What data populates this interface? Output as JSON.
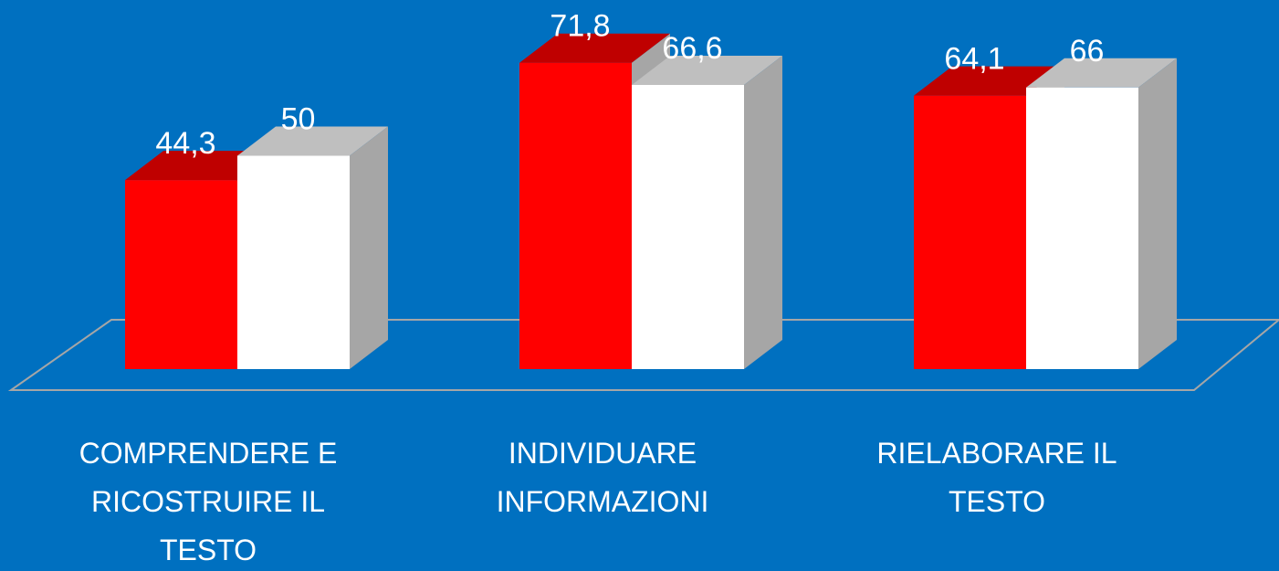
{
  "chart_data": {
    "type": "bar3d",
    "categories": [
      "COMPRENDERE E RICOSTRUIRE IL TESTO",
      "INDIVIDUARE INFORMAZIONI",
      "RIELABORARE IL TESTO"
    ],
    "series": [
      {
        "color": "#ff0000",
        "values": [
          44.3,
          71.8,
          64.1
        ],
        "value_labels": [
          "44,3",
          "71,8",
          "64,1"
        ]
      },
      {
        "color": "#ffffff",
        "values": [
          50,
          66.6,
          66
        ],
        "value_labels": [
          "50",
          "66,6",
          "66"
        ]
      }
    ]
  }
}
